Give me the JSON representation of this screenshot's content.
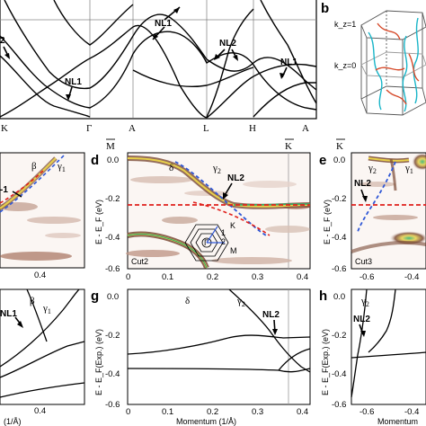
{
  "figure": {
    "panel_letters": [
      "b",
      "d",
      "e",
      "g",
      "h"
    ],
    "top_panel": {
      "k_labels": [
        "K",
        "Γ",
        "A",
        "L",
        "H",
        "A"
      ],
      "annotations": [
        "NL1",
        "NL1",
        "NL1",
        "NL2",
        "2"
      ]
    },
    "panel_b": {
      "kz_labels": [
        "k_z=1",
        "k_z=0"
      ]
    },
    "panel_c_partial": {
      "band_labels": [
        "β",
        "γ1"
      ],
      "annotation": "-1",
      "x_tick": "0.4"
    },
    "panel_d": {
      "top_labels": [
        "M",
        "K"
      ],
      "band_labels": [
        "δ",
        "γ2"
      ],
      "annotation": "NL2",
      "cut_label": "Cut2",
      "ylabel": "E - E_F (eV)",
      "y_ticks": [
        "0.0",
        "-0.2",
        "-0.4",
        "-0.6"
      ],
      "x_ticks": [
        "0",
        "0.1",
        "0.2",
        "0.3",
        "0.4"
      ],
      "inset_labels": [
        "K",
        "M",
        "Γ",
        "1",
        "2"
      ]
    },
    "panel_e": {
      "top_labels": [
        "K"
      ],
      "band_labels": [
        "γ2",
        "γ1"
      ],
      "annotation": "NL2",
      "cut_label": "Cut3",
      "ylabel": "E - E_F (eV)",
      "y_ticks": [
        "0.0",
        "-0.2",
        "-0.4",
        "-0.6"
      ],
      "x_ticks": [
        "-0.6",
        "-0.4"
      ]
    },
    "panel_f_partial": {
      "band_labels": [
        "β",
        "γ1"
      ],
      "annotation": "NL1",
      "x_ticks": [
        "0.4"
      ],
      "xlabel": "(1/Å)"
    },
    "panel_g": {
      "band_labels": [
        "δ",
        "γ2"
      ],
      "annotation": "NL2",
      "ylabel": "E - E_F(Exp.) (eV)",
      "y_ticks": [
        "0.0",
        "-0.2",
        "-0.4",
        "-0.6"
      ],
      "x_ticks": [
        "0",
        "0.1",
        "0.2",
        "0.3",
        "0.4"
      ],
      "xlabel": "Momentum (1/Å)"
    },
    "panel_h": {
      "band_labels": [
        "γ2"
      ],
      "annotation": "NL2",
      "ylabel": "E - E_F(Exp.) (eV)",
      "y_ticks": [
        "0.0",
        "-0.2",
        "-0.4",
        "-0.6"
      ],
      "x_ticks": [
        "-0.6",
        "-0.4"
      ],
      "xlabel": "Momentum"
    }
  },
  "colors": {
    "line": "#000000",
    "dashed_blue": "#2f57d6",
    "dashed_red": "#e0201b",
    "arpes_brown": "#7a4a35",
    "arpes_yellow": "#e8d04a",
    "arpes_green": "#2bb06a"
  }
}
